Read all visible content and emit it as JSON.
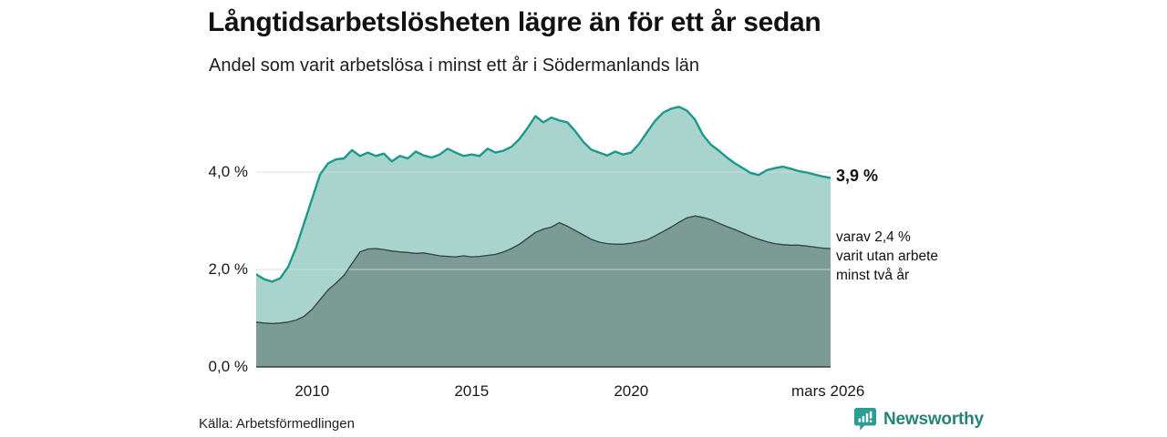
{
  "header": {
    "title": "Långtidsarbetslösheten lägre än för ett år sedan",
    "subtitle": "Andel som varit arbetslösa i minst ett år i Södermanlands län"
  },
  "annotations": {
    "total_label": "3,9 %",
    "detail_line1": "varav 2,4 %",
    "detail_line2": "varit utan arbete",
    "detail_line3": "minst två år"
  },
  "footer": {
    "source": "Källa: Arbetsförmedlingen",
    "brand": "Newsworthy",
    "brand_icon": "newsworthy-bars-icon"
  },
  "colors": {
    "background": "#ffffff",
    "grid": "#d4d8df",
    "axis": "#3d3d3d",
    "text": "#1a1a1a",
    "brand_teal": "#27827a",
    "brand_icon_teal": "#2b9e94"
  },
  "chart_data": {
    "type": "area",
    "title": "Långtidsarbetslösheten lägre än för ett år sedan",
    "subtitle": "Andel som varit arbetslösa i minst ett år i Södermanlands län",
    "x_unit": "decimal_year_quarterly",
    "xlim": [
      2008.25,
      2026.25
    ],
    "ylim": [
      0,
      5.6
    ],
    "grid": "horizontal",
    "legend_position": "right-annotations",
    "x": [
      2008.25,
      2008.5,
      2008.75,
      2009.0,
      2009.25,
      2009.5,
      2009.75,
      2010.0,
      2010.25,
      2010.5,
      2010.75,
      2011.0,
      2011.25,
      2011.5,
      2011.75,
      2012.0,
      2012.25,
      2012.5,
      2012.75,
      2013.0,
      2013.25,
      2013.5,
      2013.75,
      2014.0,
      2014.25,
      2014.5,
      2014.75,
      2015.0,
      2015.25,
      2015.5,
      2015.75,
      2016.0,
      2016.25,
      2016.5,
      2016.75,
      2017.0,
      2017.25,
      2017.5,
      2017.75,
      2018.0,
      2018.25,
      2018.5,
      2018.75,
      2019.0,
      2019.25,
      2019.5,
      2019.75,
      2020.0,
      2020.25,
      2020.5,
      2020.75,
      2021.0,
      2021.25,
      2021.5,
      2021.75,
      2022.0,
      2022.25,
      2022.5,
      2022.75,
      2023.0,
      2023.25,
      2023.5,
      2023.75,
      2024.0,
      2024.25,
      2024.5,
      2024.75,
      2025.0,
      2025.25,
      2025.5,
      2025.75,
      2026.0,
      2026.25
    ],
    "series": [
      {
        "name": "Andel arbetslösa minst ett år",
        "end_value_label": "3,9 %",
        "line_color": "#1b9a8c",
        "fill_color": "#a9d4cd",
        "line_width": 2.4,
        "values": [
          1.9,
          1.8,
          1.75,
          1.82,
          2.05,
          2.45,
          2.95,
          3.45,
          3.95,
          4.18,
          4.26,
          4.28,
          4.45,
          4.33,
          4.4,
          4.33,
          4.38,
          4.22,
          4.33,
          4.28,
          4.42,
          4.34,
          4.3,
          4.36,
          4.48,
          4.4,
          4.33,
          4.36,
          4.33,
          4.48,
          4.4,
          4.44,
          4.52,
          4.68,
          4.9,
          5.15,
          5.02,
          5.12,
          5.06,
          5.02,
          4.84,
          4.62,
          4.46,
          4.4,
          4.34,
          4.42,
          4.36,
          4.4,
          4.58,
          4.82,
          5.05,
          5.22,
          5.3,
          5.34,
          5.26,
          5.08,
          4.76,
          4.56,
          4.44,
          4.3,
          4.18,
          4.08,
          3.98,
          3.94,
          4.04,
          4.08,
          4.11,
          4.07,
          4.02,
          3.99,
          3.95,
          3.91,
          3.88
        ]
      },
      {
        "name": "varav utan arbete minst två år",
        "end_value_label": "varav 2,4 % varit utan arbete minst två år",
        "line_color": "#32423e",
        "fill_color": "#7b9b94",
        "line_width": 1.3,
        "values": [
          0.92,
          0.9,
          0.89,
          0.9,
          0.92,
          0.96,
          1.04,
          1.18,
          1.38,
          1.58,
          1.72,
          1.88,
          2.12,
          2.36,
          2.42,
          2.43,
          2.41,
          2.38,
          2.36,
          2.35,
          2.33,
          2.34,
          2.31,
          2.28,
          2.27,
          2.26,
          2.28,
          2.26,
          2.27,
          2.29,
          2.31,
          2.36,
          2.43,
          2.52,
          2.64,
          2.76,
          2.83,
          2.87,
          2.96,
          2.89,
          2.8,
          2.71,
          2.62,
          2.56,
          2.53,
          2.52,
          2.52,
          2.54,
          2.57,
          2.61,
          2.69,
          2.78,
          2.87,
          2.97,
          3.06,
          3.1,
          3.07,
          3.02,
          2.95,
          2.88,
          2.82,
          2.75,
          2.68,
          2.62,
          2.57,
          2.53,
          2.51,
          2.5,
          2.5,
          2.48,
          2.46,
          2.44,
          2.43
        ]
      }
    ],
    "y_ticks": [
      {
        "value": 0,
        "label": "0,0 %"
      },
      {
        "value": 2,
        "label": "2,0 %"
      },
      {
        "value": 4,
        "label": "4,0 %"
      }
    ],
    "x_ticks": [
      {
        "value": 2010,
        "label": "2010"
      },
      {
        "value": 2015,
        "label": "2015"
      },
      {
        "value": 2020,
        "label": "2020"
      },
      {
        "value": 2026.17,
        "label": "mars 2026"
      }
    ]
  }
}
